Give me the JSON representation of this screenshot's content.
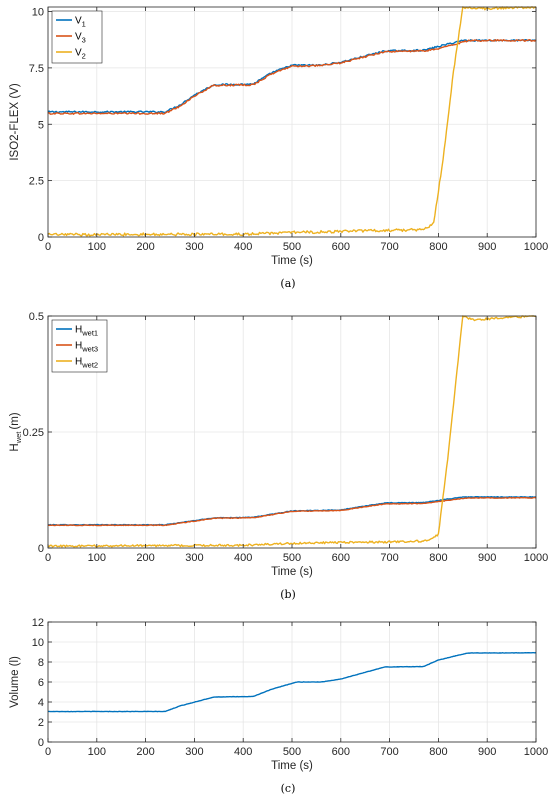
{
  "chart_data": [
    {
      "type": "line",
      "caption": "(a)",
      "xlabel": "Time (s)",
      "ylabel": "ISO2-FLEX (V)",
      "xlim": [
        0,
        1000
      ],
      "ylim": [
        0,
        10.2
      ],
      "xticks": [
        0,
        100,
        200,
        300,
        400,
        500,
        600,
        700,
        800,
        900,
        1000
      ],
      "yticks": [
        0,
        2.5,
        5,
        7.5,
        10
      ],
      "ytick_labels": [
        "0",
        "2.5",
        "5",
        "7.5",
        "10"
      ],
      "grid": true,
      "legend_position": "top-left",
      "series": [
        {
          "name": "V",
          "sub": "1",
          "color": "#0072bd",
          "noise": 0.035,
          "x": [
            0,
            240,
            270,
            300,
            340,
            420,
            460,
            500,
            560,
            600,
            690,
            770,
            800,
            850,
            900,
            1000
          ],
          "y": [
            5.55,
            5.55,
            5.85,
            6.3,
            6.75,
            6.78,
            7.3,
            7.62,
            7.62,
            7.75,
            8.25,
            8.28,
            8.45,
            8.72,
            8.72,
            8.72
          ]
        },
        {
          "name": "V",
          "sub": "3",
          "color": "#d95319",
          "noise": 0.035,
          "x": [
            0,
            240,
            270,
            300,
            340,
            420,
            460,
            500,
            560,
            600,
            690,
            770,
            800,
            860,
            900,
            1000
          ],
          "y": [
            5.48,
            5.48,
            5.8,
            6.25,
            6.72,
            6.75,
            7.25,
            7.58,
            7.6,
            7.72,
            8.22,
            8.25,
            8.35,
            8.7,
            8.72,
            8.72
          ]
        },
        {
          "name": "V",
          "sub": "2",
          "color": "#edb120",
          "noise": 0.06,
          "x": [
            0,
            200,
            400,
            500,
            600,
            700,
            770,
            790,
            810,
            830,
            850,
            870,
            1000
          ],
          "y": [
            0.1,
            0.12,
            0.12,
            0.2,
            0.24,
            0.3,
            0.32,
            0.6,
            3.5,
            7.2,
            10.2,
            10.12,
            10.2
          ]
        }
      ]
    },
    {
      "type": "line",
      "caption": "(b)",
      "xlabel": "Time (s)",
      "ylabel": "H",
      "ylabel_sub": "wet",
      "ylabel_unit": "(m)",
      "xlim": [
        0,
        1000
      ],
      "ylim": [
        0,
        0.5
      ],
      "xticks": [
        0,
        100,
        200,
        300,
        400,
        500,
        600,
        700,
        800,
        900,
        1000
      ],
      "yticks": [
        0,
        0.25,
        0.5
      ],
      "ytick_labels": [
        "0",
        "0.25",
        "0.5"
      ],
      "grid": true,
      "legend_position": "top-left",
      "series": [
        {
          "name": "H",
          "sub": "wet1",
          "color": "#0072bd",
          "noise": 0.0007,
          "x": [
            0,
            240,
            340,
            420,
            500,
            600,
            690,
            770,
            850,
            1000
          ],
          "y": [
            0.05,
            0.05,
            0.065,
            0.066,
            0.08,
            0.082,
            0.097,
            0.098,
            0.11,
            0.11
          ]
        },
        {
          "name": "H",
          "sub": "wet3",
          "color": "#d95319",
          "noise": 0.0007,
          "x": [
            0,
            240,
            340,
            420,
            500,
            600,
            690,
            770,
            860,
            1000
          ],
          "y": [
            0.049,
            0.049,
            0.064,
            0.065,
            0.079,
            0.081,
            0.095,
            0.096,
            0.108,
            0.108
          ]
        },
        {
          "name": "H",
          "sub": "wet2",
          "color": "#edb120",
          "noise": 0.0022,
          "x": [
            0,
            200,
            400,
            500,
            600,
            700,
            780,
            800,
            820,
            850,
            870,
            1000
          ],
          "y": [
            0.004,
            0.005,
            0.006,
            0.01,
            0.012,
            0.013,
            0.015,
            0.03,
            0.2,
            0.5,
            0.492,
            0.5
          ]
        }
      ]
    },
    {
      "type": "line",
      "caption": "(c)",
      "xlabel": "Time (s)",
      "ylabel": "Volume (l)",
      "xlim": [
        0,
        1000
      ],
      "ylim": [
        0,
        12
      ],
      "xticks": [
        0,
        100,
        200,
        300,
        400,
        500,
        600,
        700,
        800,
        900,
        1000
      ],
      "yticks": [
        0,
        2,
        4,
        6,
        8,
        10,
        12
      ],
      "ytick_labels": [
        "0",
        "2",
        "4",
        "6",
        "8",
        "10",
        "12"
      ],
      "grid": true,
      "legend_position": "none",
      "series": [
        {
          "name": "",
          "sub": "",
          "color": "#0072bd",
          "noise": 0.015,
          "x": [
            0,
            240,
            270,
            340,
            420,
            460,
            510,
            560,
            600,
            690,
            770,
            800,
            860,
            1000
          ],
          "y": [
            3.05,
            3.05,
            3.6,
            4.5,
            4.55,
            5.3,
            6.0,
            6.0,
            6.3,
            7.5,
            7.55,
            8.2,
            8.9,
            8.92
          ]
        }
      ]
    }
  ]
}
